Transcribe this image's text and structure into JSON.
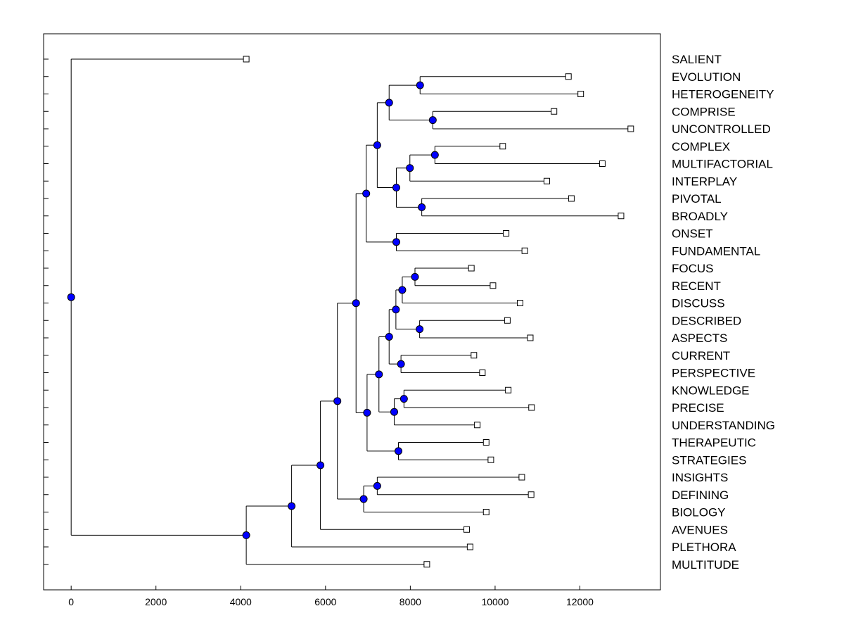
{
  "chart_data": {
    "type": "dendrogram",
    "title": "",
    "xlabel": "",
    "ylabel": "",
    "xlim": [
      -650,
      13900
    ],
    "xticks": [
      0,
      2000,
      4000,
      6000,
      8000,
      10000,
      12000
    ],
    "xtick_labels": [
      "0",
      "2000",
      "4000",
      "6000",
      "8000",
      "10000",
      "12000"
    ],
    "grid": false,
    "leaves": [
      {
        "label": "SALIENT",
        "x": 4130
      },
      {
        "label": "EVOLUTION",
        "x": 11730
      },
      {
        "label": "HETEROGENEITY",
        "x": 12020
      },
      {
        "label": "COMPRISE",
        "x": 11390
      },
      {
        "label": "UNCONTROLLED",
        "x": 13200
      },
      {
        "label": "COMPLEX",
        "x": 10180
      },
      {
        "label": "MULTIFACTORIAL",
        "x": 12530
      },
      {
        "label": "INTERPLAY",
        "x": 11220
      },
      {
        "label": "PIVOTAL",
        "x": 11800
      },
      {
        "label": "BROADLY",
        "x": 12970
      },
      {
        "label": "ONSET",
        "x": 10260
      },
      {
        "label": "FUNDAMENTAL",
        "x": 10700
      },
      {
        "label": "FOCUS",
        "x": 9440
      },
      {
        "label": "RECENT",
        "x": 9950
      },
      {
        "label": "DISCUSS",
        "x": 10590
      },
      {
        "label": "DESCRIBED",
        "x": 10290
      },
      {
        "label": "ASPECTS",
        "x": 10830
      },
      {
        "label": "CURRENT",
        "x": 9500
      },
      {
        "label": "PERSPECTIVE",
        "x": 9700
      },
      {
        "label": "KNOWLEDGE",
        "x": 10310
      },
      {
        "label": "PRECISE",
        "x": 10860
      },
      {
        "label": "UNDERSTANDING",
        "x": 9580
      },
      {
        "label": "THERAPEUTIC",
        "x": 9790
      },
      {
        "label": "STRATEGIES",
        "x": 9900
      },
      {
        "label": "INSIGHTS",
        "x": 10630
      },
      {
        "label": "DEFINING",
        "x": 10850
      },
      {
        "label": "BIOLOGY",
        "x": 9790
      },
      {
        "label": "AVENUES",
        "x": 9330
      },
      {
        "label": "PLETHORA",
        "x": 9410
      },
      {
        "label": "MULTITUDE",
        "x": 8390
      }
    ],
    "root": {
      "x": 0,
      "children": [
        {
          "leaf": 0
        },
        {
          "x": 4130,
          "children": [
            {
              "x": 5200,
              "children": [
                {
                  "x": 5880,
                  "children": [
                    {
                      "x": 6280,
                      "children": [
                        {
                          "x": 6720,
                          "children": [
                            {
                              "x": 6960,
                              "children": [
                                {
                                  "x": 7220,
                                  "children": [
                                    {
                                      "x": 7500,
                                      "children": [
                                        {
                                          "x": 8230,
                                          "children": [
                                            {
                                              "leaf": 1
                                            },
                                            {
                                              "leaf": 2
                                            }
                                          ]
                                        },
                                        {
                                          "x": 8530,
                                          "children": [
                                            {
                                              "leaf": 3
                                            },
                                            {
                                              "leaf": 4
                                            }
                                          ]
                                        }
                                      ]
                                    },
                                    {
                                      "x": 7670,
                                      "children": [
                                        {
                                          "x": 7990,
                                          "children": [
                                            {
                                              "x": 8580,
                                              "children": [
                                                {
                                                  "leaf": 5
                                                },
                                                {
                                                  "leaf": 6
                                                }
                                              ]
                                            },
                                            {
                                              "leaf": 7
                                            }
                                          ]
                                        },
                                        {
                                          "x": 8270,
                                          "children": [
                                            {
                                              "leaf": 8
                                            },
                                            {
                                              "leaf": 9
                                            }
                                          ]
                                        }
                                      ]
                                    }
                                  ]
                                },
                                {
                                  "x": 7670,
                                  "children": [
                                    {
                                      "leaf": 10
                                    },
                                    {
                                      "leaf": 11
                                    }
                                  ]
                                }
                              ]
                            },
                            {
                              "x": 6980,
                              "children": [
                                {
                                  "x": 7260,
                                  "children": [
                                    {
                                      "x": 7500,
                                      "children": [
                                        {
                                          "x": 7660,
                                          "children": [
                                            {
                                              "x": 7810,
                                              "children": [
                                                {
                                                  "x": 8110,
                                                  "children": [
                                                    {
                                                      "leaf": 12
                                                    },
                                                    {
                                                      "leaf": 13
                                                    }
                                                  ]
                                                },
                                                {
                                                  "leaf": 14
                                                }
                                              ]
                                            },
                                            {
                                              "x": 8220,
                                              "children": [
                                                {
                                                  "leaf": 15
                                                },
                                                {
                                                  "leaf": 16
                                                }
                                              ]
                                            }
                                          ]
                                        },
                                        {
                                          "x": 7780,
                                          "children": [
                                            {
                                              "leaf": 17
                                            },
                                            {
                                              "leaf": 18
                                            }
                                          ]
                                        }
                                      ]
                                    },
                                    {
                                      "x": 7620,
                                      "children": [
                                        {
                                          "x": 7850,
                                          "children": [
                                            {
                                              "leaf": 19
                                            },
                                            {
                                              "leaf": 20
                                            }
                                          ]
                                        },
                                        {
                                          "leaf": 21
                                        }
                                      ]
                                    }
                                  ]
                                },
                                {
                                  "x": 7720,
                                  "children": [
                                    {
                                      "leaf": 22
                                    },
                                    {
                                      "leaf": 23
                                    }
                                  ]
                                }
                              ]
                            }
                          ]
                        },
                        {
                          "x": 6900,
                          "children": [
                            {
                              "x": 7220,
                              "children": [
                                {
                                  "leaf": 24
                                },
                                {
                                  "leaf": 25
                                }
                              ]
                            },
                            {
                              "leaf": 26
                            }
                          ]
                        }
                      ]
                    },
                    {
                      "leaf": 27
                    }
                  ]
                },
                {
                  "leaf": 28
                }
              ]
            },
            {
              "leaf": 29
            }
          ]
        }
      ]
    },
    "colors": {
      "node": "#0000ff",
      "node_stroke": "#000000",
      "line": "#000000",
      "leaf_fill": "#ffffff"
    }
  }
}
